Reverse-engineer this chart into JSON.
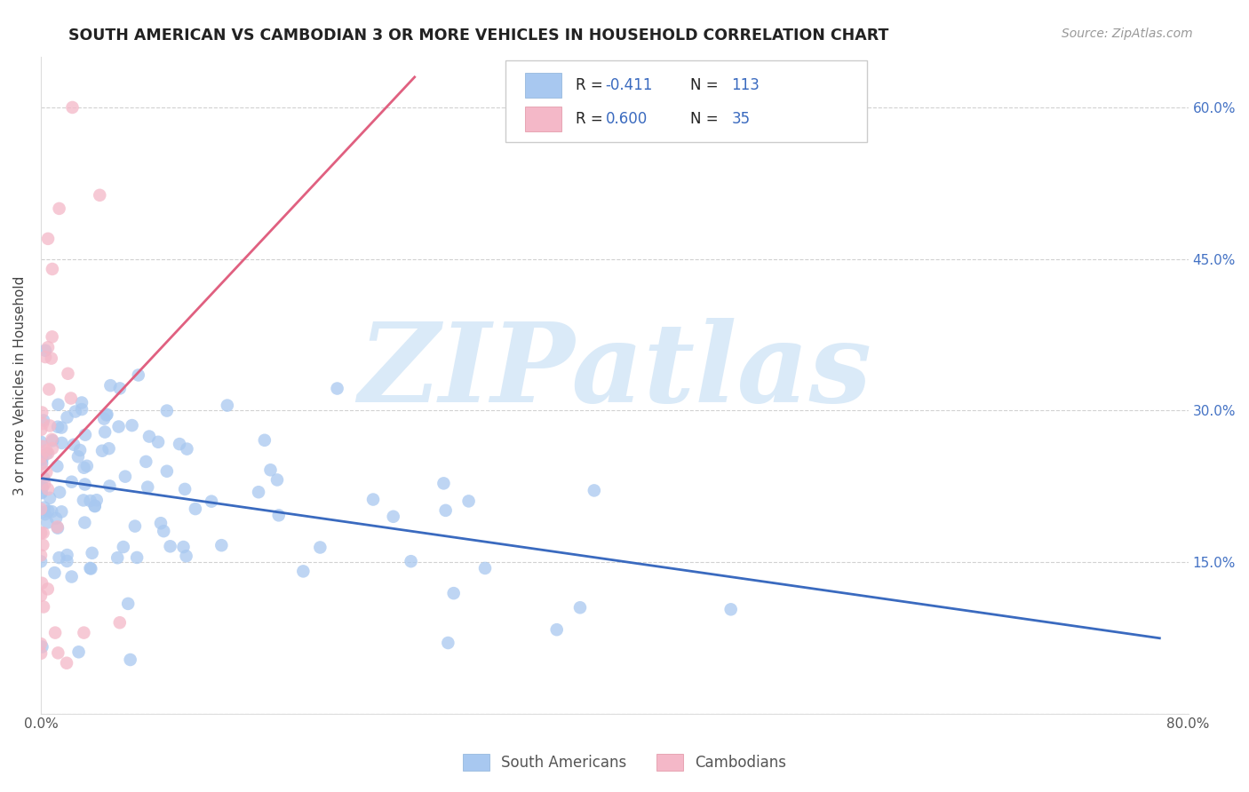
{
  "title": "SOUTH AMERICAN VS CAMBODIAN 3 OR MORE VEHICLES IN HOUSEHOLD CORRELATION CHART",
  "source": "Source: ZipAtlas.com",
  "ylabel": "3 or more Vehicles in Household",
  "watermark": "ZIPatlas",
  "xlim": [
    0.0,
    0.8
  ],
  "ylim": [
    0.0,
    0.65
  ],
  "xtick_positions": [
    0.0,
    0.1,
    0.2,
    0.3,
    0.4,
    0.5,
    0.6,
    0.7,
    0.8
  ],
  "xticklabels": [
    "0.0%",
    "",
    "",
    "",
    "",
    "",
    "",
    "",
    "80.0%"
  ],
  "ytick_positions": [
    0.0,
    0.15,
    0.3,
    0.45,
    0.6
  ],
  "right_yticklabels": [
    "",
    "15.0%",
    "30.0%",
    "45.0%",
    "60.0%"
  ],
  "south_american_color": "#a8c8f0",
  "cambodian_color": "#f4b8c8",
  "south_american_line_color": "#3a6abf",
  "cambodian_line_color": "#e06080",
  "background_color": "#ffffff",
  "grid_color": "#cccccc",
  "title_color": "#222222",
  "source_color": "#999999",
  "watermark_color": "#daeaf8",
  "legend_text_color": "#3a6abf",
  "legend_r_label_color": "#222222",
  "south_american_R": -0.411,
  "south_american_N": 113,
  "cambodian_R": 0.6,
  "cambodian_N": 35,
  "marker_size": 110
}
